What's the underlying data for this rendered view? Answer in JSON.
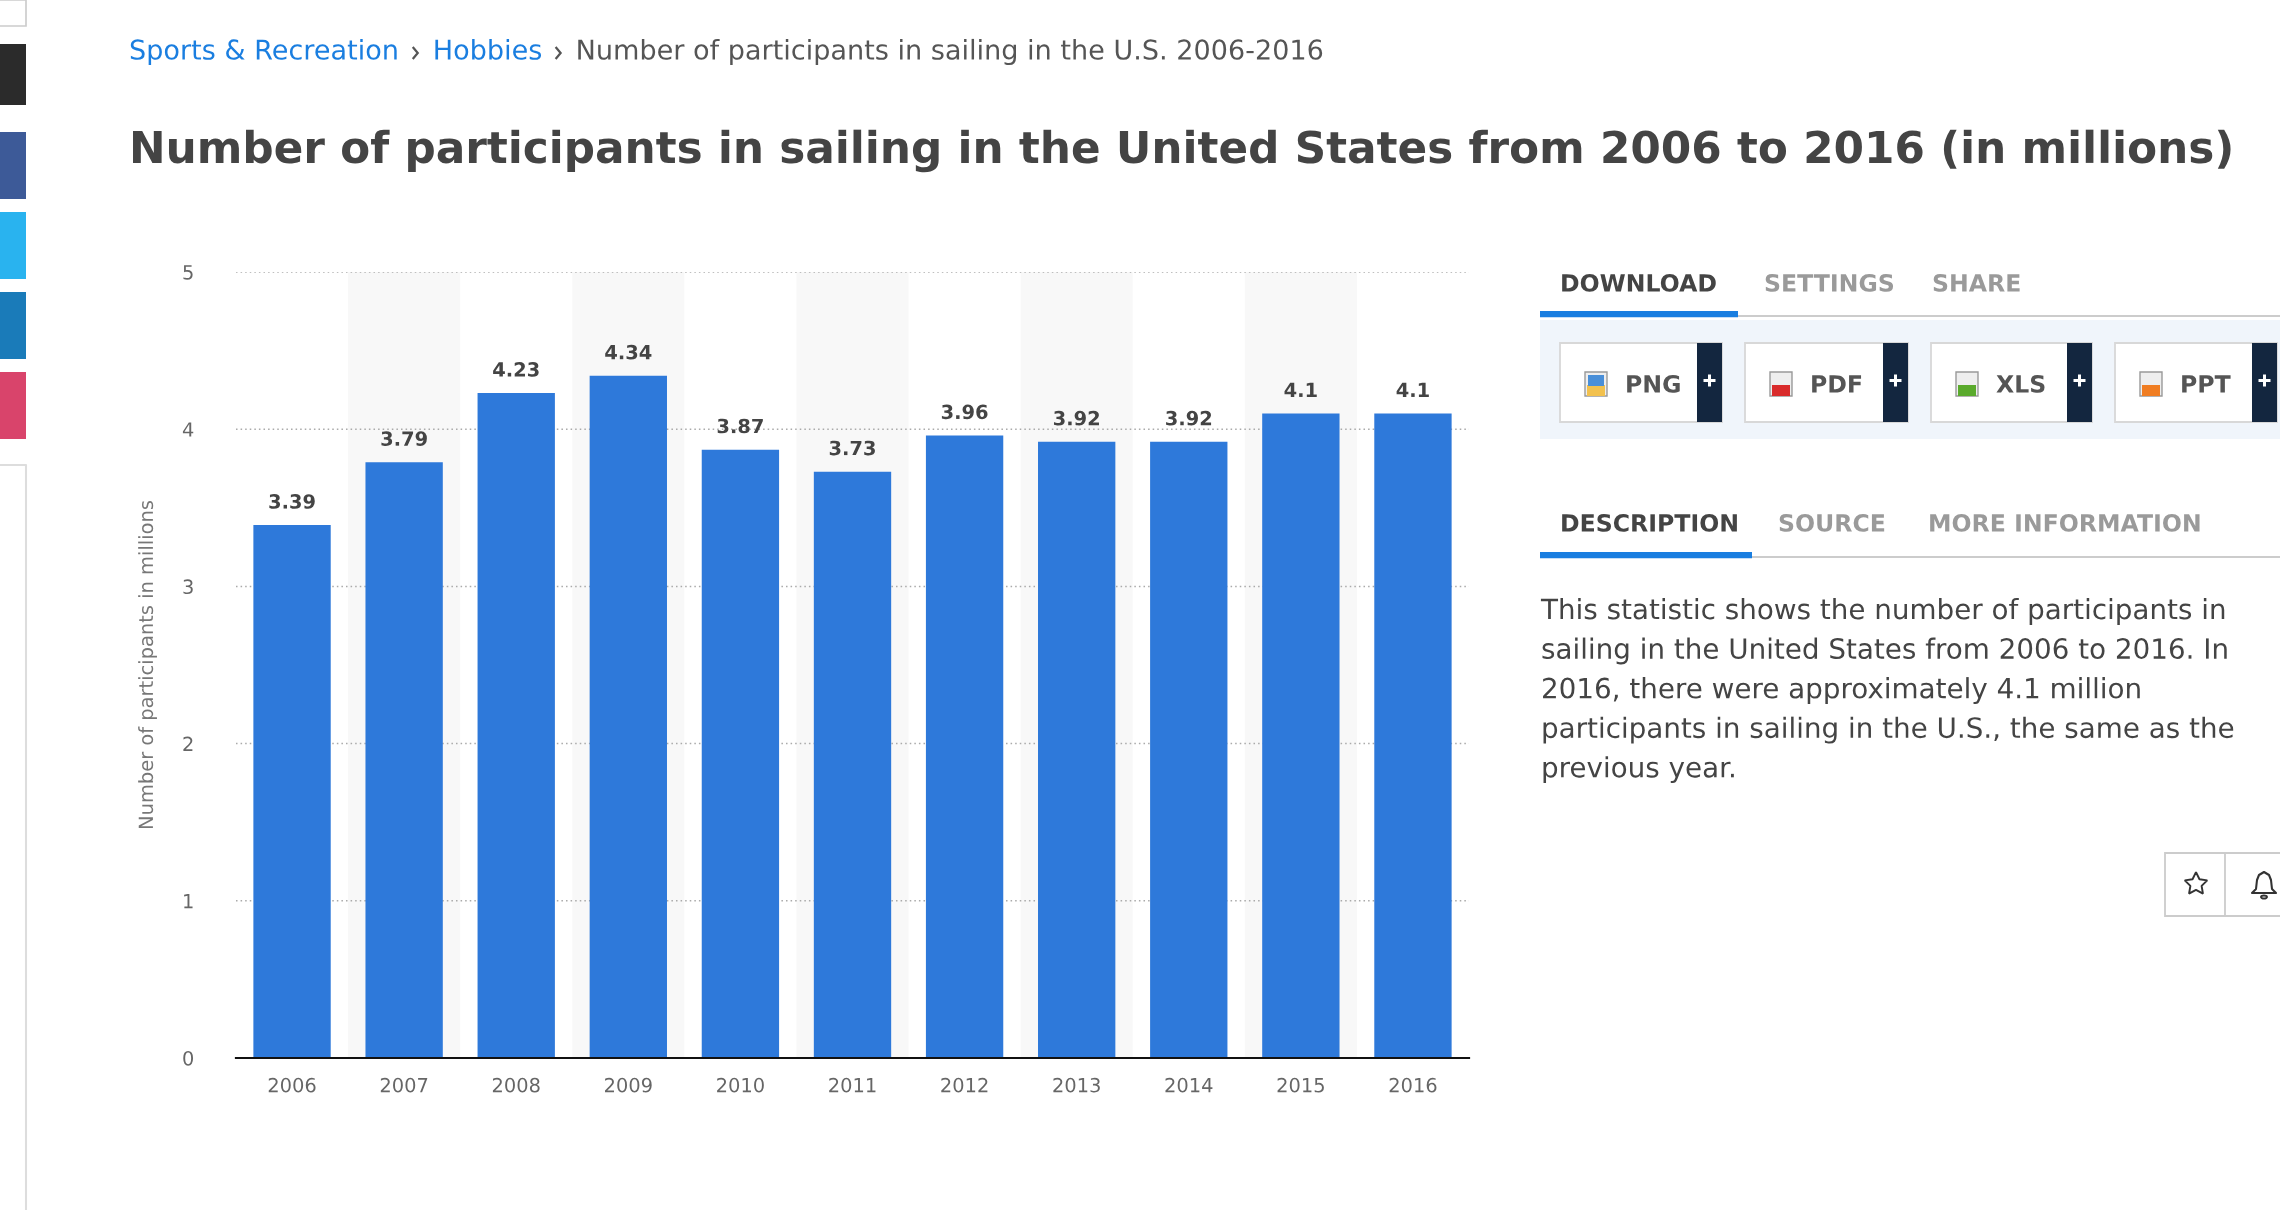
{
  "chart_data": {
    "type": "bar",
    "title": "Number of participants in sailing in the United States from 2006 to 2016 (in millions)",
    "ylabel": "Number of participants in millions",
    "categories": [
      "2006",
      "2007",
      "2008",
      "2009",
      "2010",
      "2011",
      "2012",
      "2013",
      "2014",
      "2015",
      "2016"
    ],
    "values": [
      3.39,
      3.79,
      4.23,
      4.34,
      3.87,
      3.73,
      3.96,
      3.92,
      3.92,
      4.1,
      4.1
    ],
    "color": "#2e79da",
    "ylim": [
      0,
      5
    ],
    "yticks": [
      0,
      1,
      2,
      3,
      4,
      5
    ],
    "grid": "y",
    "data_labels": true,
    "bands": [
      {
        "axis": "x",
        "from": "2007",
        "to": "2007",
        "color": "#f8f8f8"
      },
      {
        "axis": "x",
        "from": "2009",
        "to": "2009",
        "color": "#f8f8f8"
      },
      {
        "axis": "x",
        "from": "2011",
        "to": "2011",
        "color": "#f8f8f8"
      },
      {
        "axis": "x",
        "from": "2013",
        "to": "2013",
        "color": "#f8f8f8"
      },
      {
        "axis": "x",
        "from": "2015",
        "to": "2015",
        "color": "#f8f8f8"
      }
    ],
    "annotations": [
      "Sports & Recreation",
      "Hobbies",
      "Number of participants in sailing in the U.S. 2006-2016",
      "DOWNLOAD",
      "SETTINGS",
      "SHARE",
      "PNG",
      "PDF",
      "XLS",
      "PPT",
      "DESCRIPTION",
      "SOURCE",
      "MORE INFORMATION",
      "This statistic shows the number of participants in sailing in the United States from 2006 to 2016. In 2016, there were approximately 4.1 million participants in sailing in the U.S., the same as the previous year."
    ]
  }
}
